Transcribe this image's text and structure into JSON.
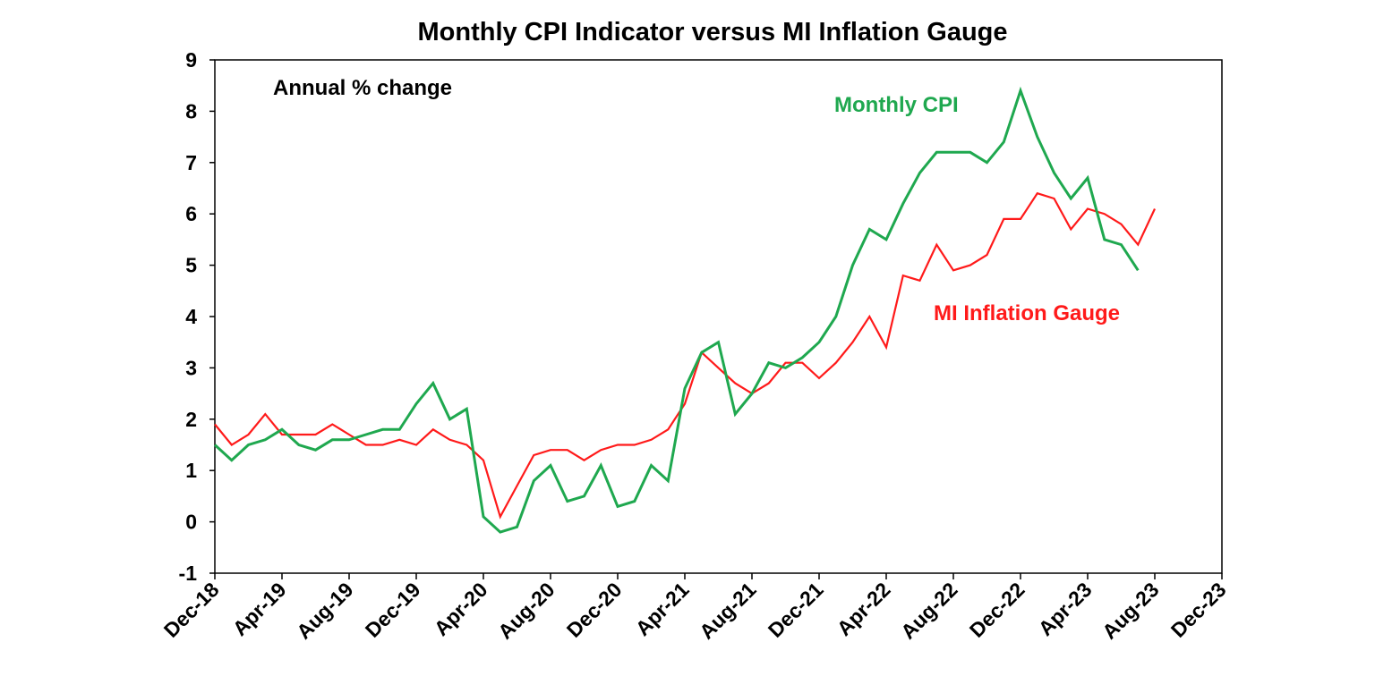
{
  "chart_data": {
    "type": "line",
    "title": "Monthly CPI Indicator versus MI Inflation Gauge",
    "annotation": "Annual % change",
    "xlabel": "",
    "ylabel": "",
    "ylim": [
      -1,
      9
    ],
    "y_ticks": [
      "9",
      "8",
      "7",
      "6",
      "5",
      "4",
      "3",
      "2",
      "1",
      "0",
      "-1"
    ],
    "x_tick_labels": [
      "Dec-18",
      "Apr-19",
      "Aug-19",
      "Dec-19",
      "Apr-20",
      "Aug-20",
      "Dec-20",
      "Apr-21",
      "Aug-21",
      "Dec-21",
      "Apr-22",
      "Aug-22",
      "Dec-22",
      "Apr-23",
      "Aug-23",
      "Dec-23"
    ],
    "x_range": [
      "Dec-18",
      "Dec-23"
    ],
    "grid": false,
    "legend": "inline labels",
    "series": [
      {
        "name": "Monthly CPI",
        "color": "#1fa84f",
        "start": "Dec-18",
        "values": [
          1.5,
          1.2,
          1.5,
          1.6,
          1.8,
          1.5,
          1.4,
          1.6,
          1.6,
          1.7,
          1.8,
          1.8,
          2.3,
          2.7,
          2.0,
          2.2,
          0.1,
          -0.2,
          -0.1,
          0.8,
          1.1,
          0.4,
          0.5,
          1.1,
          0.3,
          0.4,
          1.1,
          0.8,
          2.6,
          3.3,
          3.5,
          2.1,
          2.5,
          3.1,
          3.0,
          3.2,
          3.5,
          4.0,
          5.0,
          5.7,
          5.5,
          6.2,
          6.8,
          7.2,
          7.2,
          7.2,
          7.0,
          7.4,
          8.4,
          7.5,
          6.8,
          6.3,
          6.7,
          5.5,
          5.4,
          4.9
        ]
      },
      {
        "name": "MI Inflation Gauge",
        "color": "#ff1a1a",
        "start": "Dec-18",
        "values": [
          1.9,
          1.5,
          1.7,
          2.1,
          1.7,
          1.7,
          1.7,
          1.9,
          1.7,
          1.5,
          1.5,
          1.6,
          1.5,
          1.8,
          1.6,
          1.5,
          1.2,
          0.1,
          0.7,
          1.3,
          1.4,
          1.4,
          1.2,
          1.4,
          1.5,
          1.5,
          1.6,
          1.8,
          2.3,
          3.3,
          3.0,
          2.7,
          2.5,
          2.7,
          3.1,
          3.1,
          2.8,
          3.1,
          3.5,
          4.0,
          3.4,
          4.8,
          4.7,
          5.4,
          4.9,
          5.0,
          5.2,
          5.9,
          5.9,
          6.4,
          6.3,
          5.7,
          6.1,
          6.0,
          5.8,
          5.4,
          6.1
        ]
      }
    ]
  }
}
